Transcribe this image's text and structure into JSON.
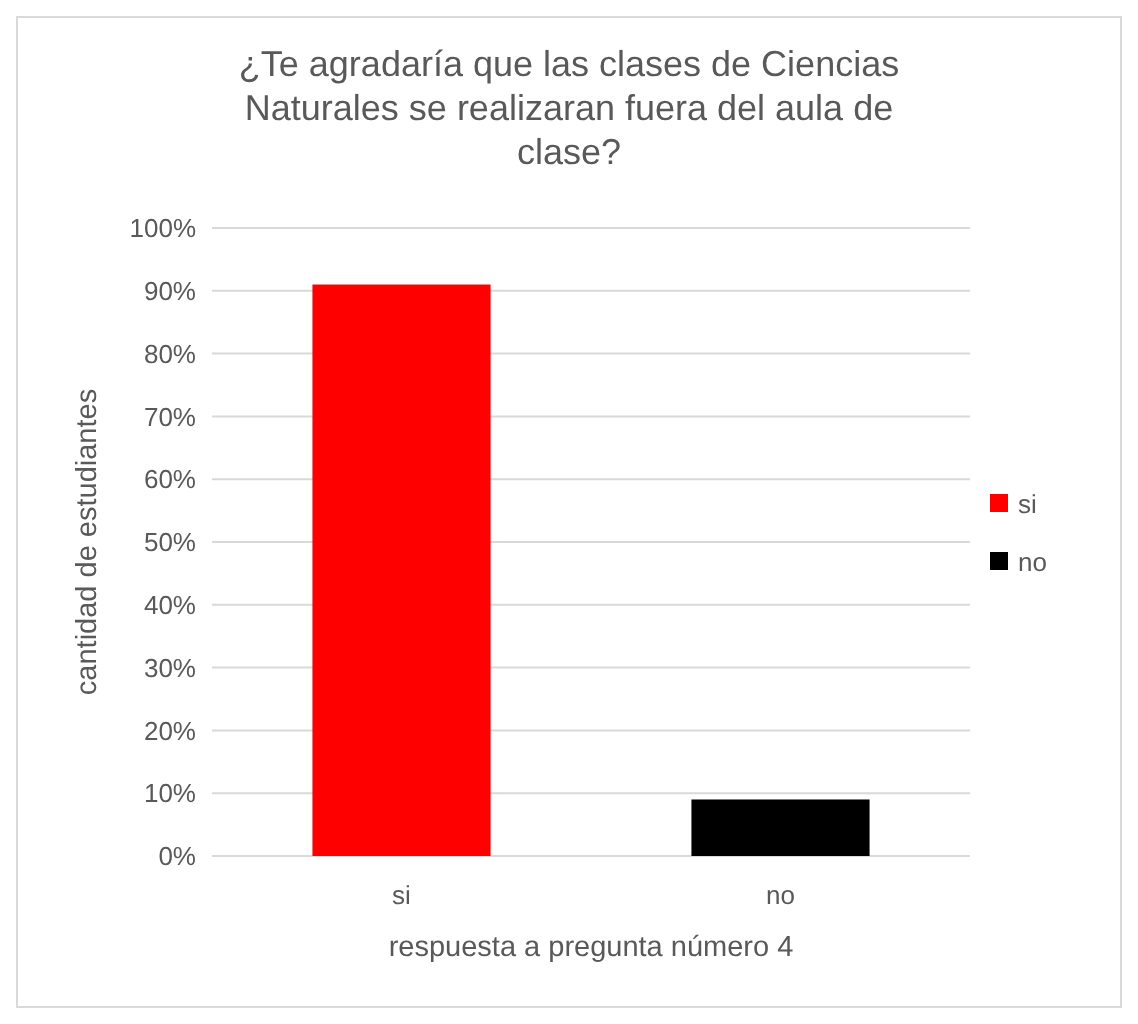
{
  "chart_data": {
    "type": "bar",
    "title": "¿Te agradaría que las clases de Ciencias Naturales se realizaran fuera del aula de clase?",
    "xlabel": "respuesta a pregunta número 4",
    "ylabel": "cantidad de estudiantes",
    "categories": [
      "si",
      "no"
    ],
    "series": [
      {
        "name": "si",
        "color": "#ff0000",
        "values": [
          91,
          null
        ]
      },
      {
        "name": "no",
        "color": "#000000",
        "values": [
          null,
          9
        ]
      }
    ],
    "stacked": true,
    "ylim": [
      0,
      100
    ],
    "yticks": [
      {
        "value": 0,
        "label": "0%"
      },
      {
        "value": 10,
        "label": "10%"
      },
      {
        "value": 20,
        "label": "20%"
      },
      {
        "value": 30,
        "label": "30%"
      },
      {
        "value": 40,
        "label": "40%"
      },
      {
        "value": 50,
        "label": "50%"
      },
      {
        "value": 60,
        "label": "60%"
      },
      {
        "value": 70,
        "label": "70%"
      },
      {
        "value": 80,
        "label": "80%"
      },
      {
        "value": 90,
        "label": "90%"
      },
      {
        "value": 100,
        "label": "100%"
      }
    ],
    "grid": "y",
    "legend": "right"
  }
}
